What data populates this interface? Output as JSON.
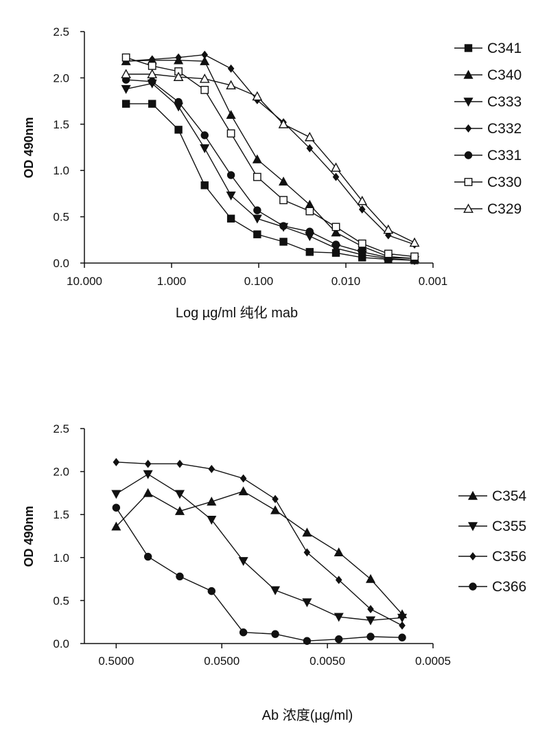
{
  "chart_data": [
    {
      "type": "line",
      "x_scale": "log-reversed",
      "xlabel": "Log µg/ml 纯化 mab",
      "ylabel": "OD 490nm",
      "xlim": [
        10,
        0.001
      ],
      "ylim": [
        0,
        2.5
      ],
      "xticks": [
        10,
        1,
        0.1,
        0.01,
        0.001
      ],
      "xtick_labels": [
        "10.000",
        "1.000",
        "0.100",
        "0.010",
        "0.001"
      ],
      "yticks": [
        0,
        0.5,
        1.0,
        1.5,
        2.0,
        2.5
      ],
      "ytick_labels": [
        "0.0",
        "0.5",
        "1.0",
        "1.5",
        "2.0",
        "2.5"
      ],
      "x": [
        3.33,
        1.67,
        0.833,
        0.417,
        0.208,
        0.104,
        0.052,
        0.026,
        0.013,
        0.0065,
        0.00326,
        0.00163
      ],
      "legend_position": "right",
      "series": [
        {
          "name": "C341",
          "marker": "square-filled",
          "values": [
            1.72,
            1.72,
            1.44,
            0.84,
            0.48,
            0.31,
            0.23,
            0.12,
            0.11,
            0.06,
            0.04,
            0.03
          ]
        },
        {
          "name": "C340",
          "marker": "triangle-up-filled",
          "values": [
            2.18,
            2.19,
            2.19,
            2.18,
            1.6,
            1.12,
            0.88,
            0.63,
            0.33,
            0.18,
            0.07,
            0.05
          ]
        },
        {
          "name": "C333",
          "marker": "triangle-down-filled",
          "values": [
            1.88,
            1.94,
            1.69,
            1.24,
            0.73,
            0.48,
            0.39,
            0.29,
            0.16,
            0.09,
            0.05,
            0.03
          ]
        },
        {
          "name": "C332",
          "marker": "diamond-filled",
          "values": [
            2.18,
            2.2,
            2.22,
            2.25,
            2.1,
            1.76,
            1.52,
            1.24,
            0.93,
            0.58,
            0.3,
            0.2
          ]
        },
        {
          "name": "C331",
          "marker": "circle-filled",
          "values": [
            1.98,
            1.96,
            1.74,
            1.38,
            0.95,
            0.57,
            0.4,
            0.34,
            0.2,
            0.12,
            0.06,
            0.05
          ]
        },
        {
          "name": "C330",
          "marker": "square-open",
          "values": [
            2.22,
            2.13,
            2.07,
            1.87,
            1.4,
            0.93,
            0.68,
            0.56,
            0.39,
            0.21,
            0.1,
            0.07
          ]
        },
        {
          "name": "C329",
          "marker": "triangle-up-open",
          "values": [
            2.04,
            2.04,
            2.01,
            1.99,
            1.92,
            1.8,
            1.5,
            1.36,
            1.03,
            0.67,
            0.36,
            0.22
          ]
        }
      ]
    },
    {
      "type": "line",
      "x_scale": "log-reversed",
      "xlabel": "Ab 浓度(µg/ml)",
      "ylabel": "OD 490nm",
      "xlim": [
        1.0,
        0.0005
      ],
      "ylim": [
        0,
        2.5
      ],
      "xticks": [
        0.5,
        0.05,
        0.005,
        0.0005
      ],
      "xtick_labels": [
        "0.5000",
        "0.0500",
        "0.0050",
        "0.0005"
      ],
      "yticks": [
        0,
        0.5,
        1.0,
        1.5,
        2.0,
        2.5
      ],
      "ytick_labels": [
        "0.0",
        "0.5",
        "1.0",
        "1.5",
        "2.0",
        "2.5"
      ],
      "x": [
        0.5,
        0.25,
        0.125,
        0.0625,
        0.03125,
        0.0156,
        0.0078,
        0.0039,
        0.00195,
        0.00098
      ],
      "legend_position": "right",
      "series": [
        {
          "name": "C354",
          "marker": "triangle-up-filled",
          "values": [
            1.36,
            1.75,
            1.54,
            1.65,
            1.77,
            1.55,
            1.29,
            1.06,
            0.75,
            0.34
          ]
        },
        {
          "name": "C355",
          "marker": "triangle-down-filled",
          "values": [
            1.74,
            1.97,
            1.74,
            1.44,
            0.96,
            0.62,
            0.48,
            0.31,
            0.27,
            0.3
          ]
        },
        {
          "name": "C356",
          "marker": "diamond-filled",
          "values": [
            2.11,
            2.09,
            2.09,
            2.03,
            1.92,
            1.68,
            1.06,
            0.74,
            0.4,
            0.21
          ]
        },
        {
          "name": "C366",
          "marker": "circle-filled",
          "values": [
            1.58,
            1.01,
            0.78,
            0.61,
            0.13,
            0.11,
            0.03,
            0.05,
            0.08,
            0.07
          ]
        }
      ]
    }
  ]
}
